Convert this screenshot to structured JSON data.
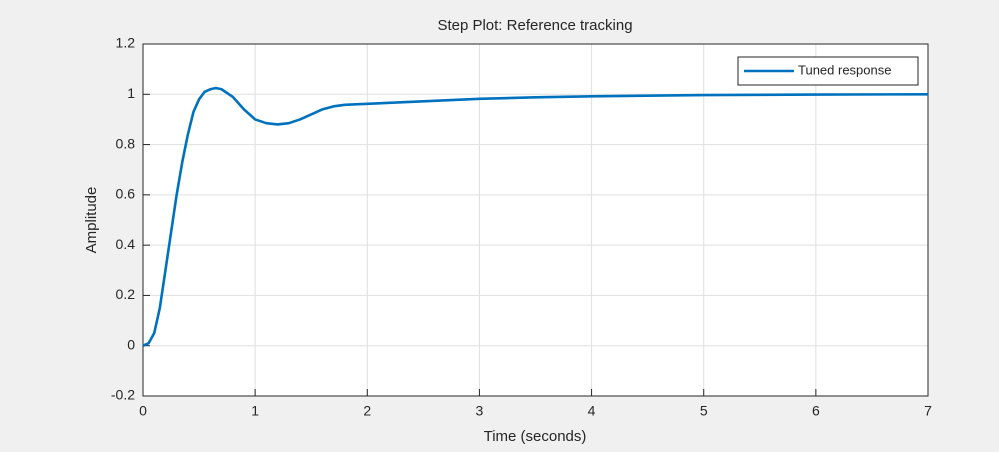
{
  "chart_data": {
    "type": "line",
    "title": "Step Plot: Reference tracking",
    "x_label": "Time (seconds)",
    "y_label": "Amplitude",
    "x": [
      0,
      0.05,
      0.1,
      0.15,
      0.2,
      0.25,
      0.3,
      0.35,
      0.4,
      0.45,
      0.5,
      0.55,
      0.6,
      0.65,
      0.7,
      0.8,
      0.9,
      1.0,
      1.1,
      1.2,
      1.3,
      1.4,
      1.5,
      1.6,
      1.7,
      1.8,
      2.0,
      2.5,
      3,
      3.5,
      4,
      5,
      6,
      7
    ],
    "series": [
      {
        "name": "Tuned response",
        "color": "#0072bd",
        "values": [
          0,
          0.01,
          0.05,
          0.15,
          0.3,
          0.45,
          0.6,
          0.73,
          0.84,
          0.93,
          0.98,
          1.01,
          1.02,
          1.025,
          1.02,
          0.99,
          0.94,
          0.9,
          0.885,
          0.88,
          0.885,
          0.9,
          0.92,
          0.94,
          0.952,
          0.958,
          0.962,
          0.972,
          0.982,
          0.988,
          0.992,
          0.997,
          0.999,
          1.0
        ]
      }
    ],
    "xlim": [
      0,
      7
    ],
    "xticks": [
      0,
      1,
      2,
      3,
      4,
      5,
      6,
      7
    ],
    "ylim": [
      -0.2,
      1.2
    ],
    "yticks": [
      -0.2,
      0,
      0.2,
      0.4,
      0.6,
      0.8,
      1,
      1.2
    ],
    "grid": true,
    "legend": "top-right"
  }
}
